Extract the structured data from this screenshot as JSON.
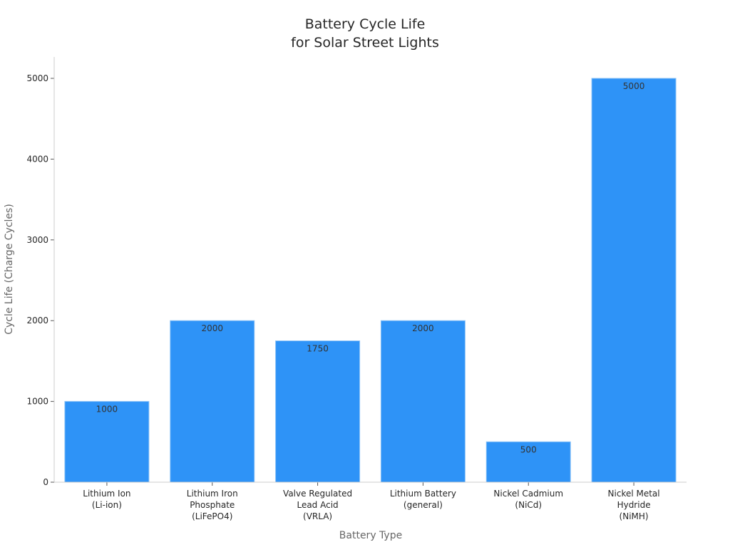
{
  "chart_data": {
    "type": "bar",
    "title": [
      "Battery Cycle Life",
      "for Solar Street Lights"
    ],
    "xlabel": "Battery Type",
    "ylabel": "Cycle Life (Charge Cycles)",
    "categories": [
      [
        "Lithium Ion",
        "(Li-ion)"
      ],
      [
        "Lithium Iron",
        "Phosphate",
        "(LiFePO4)"
      ],
      [
        "Valve Regulated",
        "Lead Acid",
        "(VRLA)"
      ],
      [
        "Lithium Battery",
        "(general)"
      ],
      [
        "Nickel Cadmium",
        "(NiCd)"
      ],
      [
        "Nickel Metal",
        "Hydride",
        "(NiMH)"
      ]
    ],
    "values": [
      1000,
      2000,
      1750,
      2000,
      500,
      5000
    ],
    "yticks": [
      0,
      1000,
      2000,
      3000,
      4000,
      5000
    ],
    "ylim": [
      0,
      5000
    ],
    "grid": false,
    "bar_color": "#2E93F7",
    "bar_edge_color": "#8CC3F7"
  }
}
